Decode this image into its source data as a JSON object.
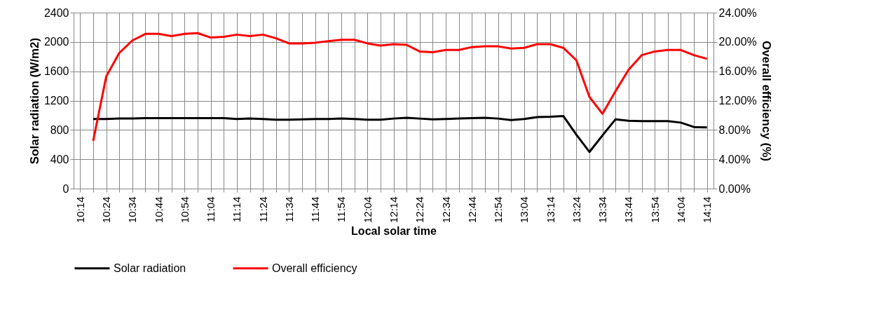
{
  "chart_data": {
    "type": "line",
    "xlabel": "Local solar time",
    "ylabel": "Solar radiation (W/m2)",
    "y2label": "Overall efficiency (%)",
    "categories": [
      "10:14",
      null,
      "10:24",
      null,
      "10:34",
      null,
      "10:44",
      null,
      "10:54",
      null,
      "11:04",
      null,
      "11:14",
      null,
      "11:24",
      null,
      "11:34",
      null,
      "11:44",
      null,
      "11:54",
      null,
      "12:04",
      null,
      "12:14",
      null,
      "12:24",
      null,
      "12:34",
      null,
      "12:44",
      null,
      "12:54",
      null,
      "13:04",
      null,
      "13:14",
      null,
      "13:24",
      null,
      "13:34",
      null,
      "13:44",
      null,
      "13:54",
      null,
      "14:04",
      null,
      "14:14"
    ],
    "series": [
      {
        "name": "Solar radiation",
        "color": "#000000",
        "values": [
          null,
          950,
          950,
          955,
          955,
          960,
          960,
          960,
          960,
          960,
          960,
          960,
          950,
          955,
          950,
          940,
          940,
          945,
          950,
          950,
          955,
          950,
          940,
          940,
          955,
          965,
          955,
          945,
          950,
          955,
          960,
          965,
          955,
          935,
          950,
          975,
          980,
          990,
          735,
          500,
          725,
          945,
          925,
          920,
          920,
          920,
          900,
          840,
          835
        ]
      },
      {
        "name": "Overall efficiency",
        "color": "#ff0000",
        "axis": "y2",
        "values": [
          null,
          6.5,
          15.3,
          18.5,
          20.2,
          21.1,
          21.1,
          20.8,
          21.1,
          21.2,
          20.6,
          20.7,
          21.0,
          20.8,
          21.0,
          20.5,
          19.8,
          19.8,
          19.9,
          20.1,
          20.3,
          20.3,
          19.8,
          19.5,
          19.7,
          19.6,
          18.7,
          18.6,
          18.9,
          18.9,
          19.3,
          19.4,
          19.4,
          19.1,
          19.2,
          19.7,
          19.7,
          19.2,
          17.5,
          12.5,
          10.2,
          13.3,
          16.2,
          18.2,
          18.7,
          18.9,
          18.9,
          18.2,
          17.7
        ]
      }
    ],
    "ylim": [
      0,
      2400
    ],
    "yticks": [
      0,
      400,
      800,
      1200,
      1600,
      2000,
      2400
    ],
    "y2lim": [
      0,
      24
    ],
    "y2ticks": [
      {
        "value": 0,
        "label": "0.00%"
      },
      {
        "value": 4,
        "label": "4.00%"
      },
      {
        "value": 8,
        "label": "8.00%"
      },
      {
        "value": 12,
        "label": "12.00%"
      },
      {
        "value": 16,
        "label": "16.00%"
      },
      {
        "value": 20,
        "label": "20.00%"
      },
      {
        "value": 24,
        "label": "24.00%"
      }
    ],
    "grid": true,
    "legend": "bottom",
    "marker": "none",
    "line_style": "solid"
  }
}
